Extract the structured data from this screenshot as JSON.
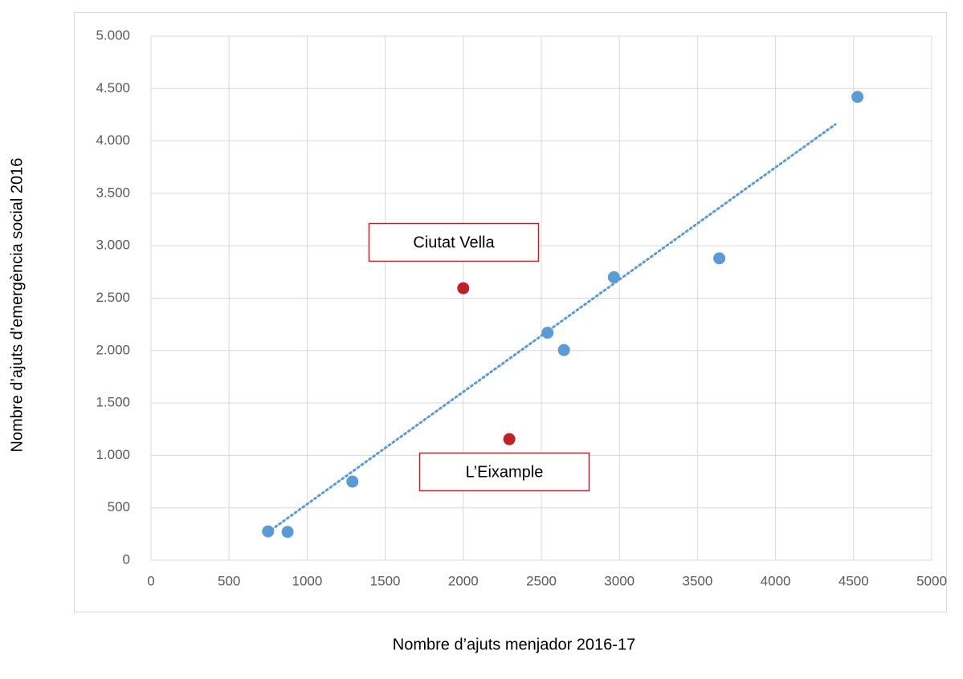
{
  "chart_data": {
    "type": "scatter",
    "x_label": "Nombre d’ajuts menjador 2016-17",
    "y_label": "Nombre d’ajuts d’emergència social 2016",
    "xlim": [
      0,
      5000
    ],
    "ylim": [
      0,
      5000
    ],
    "xticks": [
      0,
      500,
      1000,
      1500,
      2000,
      2500,
      3000,
      3500,
      4000,
      4500,
      5000
    ],
    "yticks": [
      0,
      500,
      {
        "value": 1000,
        "label": "1.000"
      },
      {
        "value": 1500,
        "label": "1.500"
      },
      {
        "value": 2000,
        "label": "2.000"
      },
      {
        "value": 2500,
        "label": "2.500"
      },
      {
        "value": 3000,
        "label": "3.000"
      },
      {
        "value": 3500,
        "label": "3.500"
      },
      {
        "value": 4000,
        "label": "4.000"
      },
      {
        "value": 4500,
        "label": "4.500"
      },
      {
        "value": 5000,
        "label": "5.000"
      }
    ],
    "grid": true,
    "series": [
      {
        "color": "#5b9bd5",
        "x": [
          750,
          875,
          1290,
          2540,
          2645,
          2965,
          3640,
          4525
        ],
        "y": [
          275,
          270,
          750,
          2170,
          2005,
          2700,
          2880,
          4420
        ]
      },
      {
        "color": "#c0202a",
        "x": [
          2000,
          2295
        ],
        "y": [
          2595,
          1155
        ]
      }
    ],
    "trendline": {
      "color": "#5b9bd5",
      "x": [
        772,
        4383
      ],
      "y": [
        291,
        4158
      ]
    },
    "annotations": [
      "Ciutat Vella",
      "L’Eixample"
    ]
  }
}
